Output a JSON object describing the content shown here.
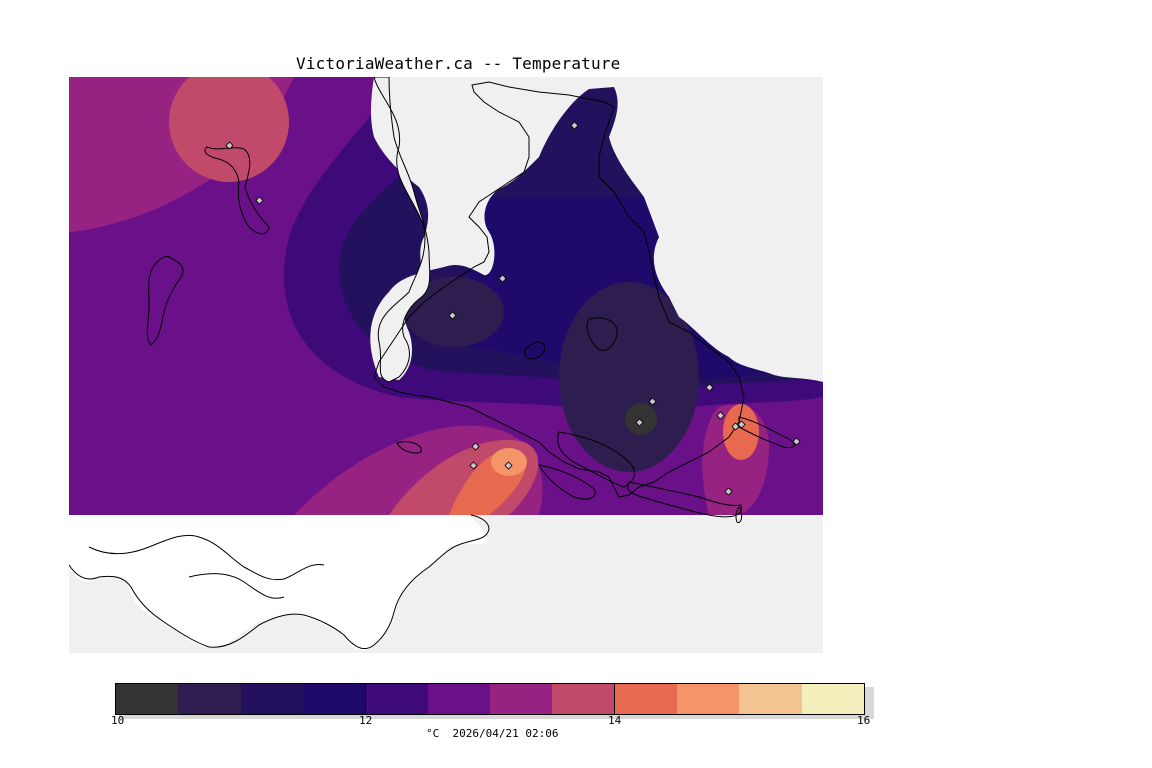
{
  "title": "VictoriaWeather.ca -- Temperature",
  "colorbar": {
    "colors": [
      "#333333",
      "#2d1e4f",
      "#24115e",
      "#1f0a6b",
      "#3e0a7a",
      "#6a1089",
      "#962282",
      "#c14a6b",
      "#e76950",
      "#f49468",
      "#f4c392",
      "#f5efbd"
    ],
    "tick_labels": [
      "10",
      "12",
      "14",
      "16"
    ]
  },
  "footer": {
    "units_time": "°C  2026/04/21 02:06"
  },
  "map": {
    "land_color": "#ffffff",
    "water_color": "#f0f0f0",
    "stations_count": 16
  }
}
